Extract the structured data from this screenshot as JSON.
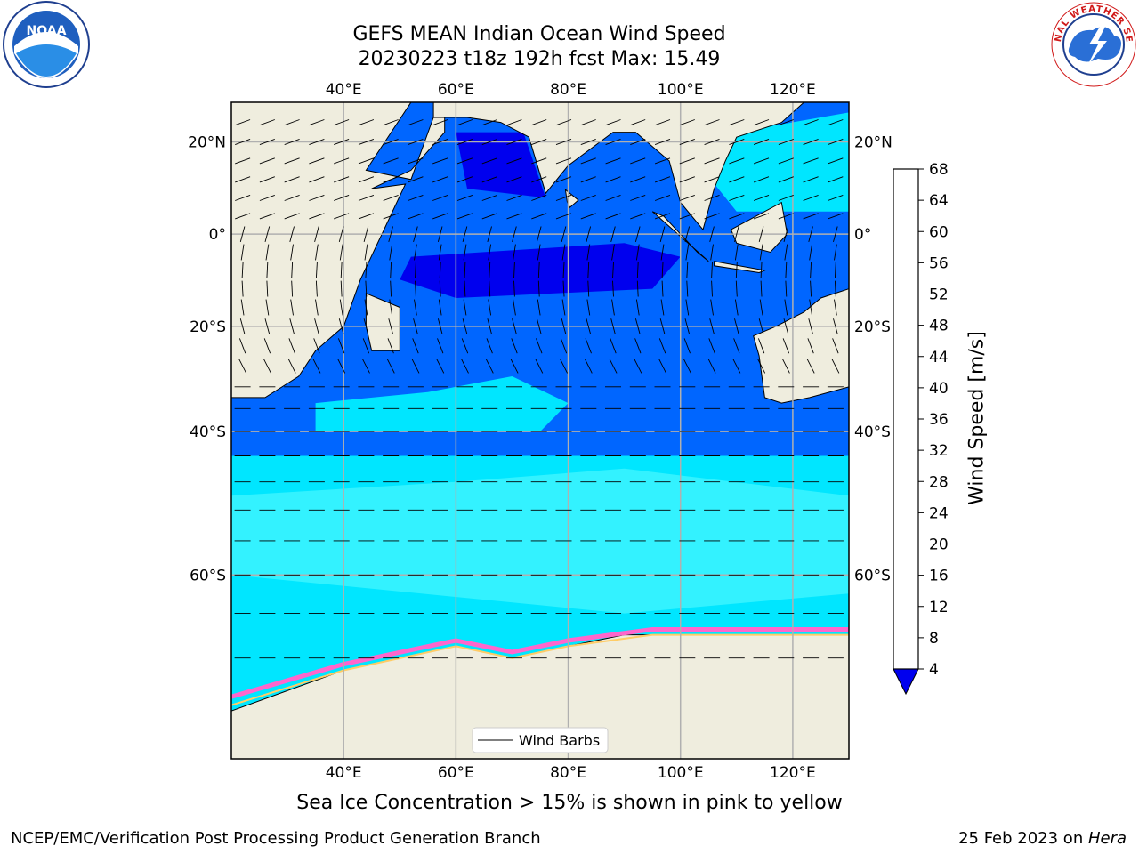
{
  "title": {
    "line1": "GEFS MEAN Indian Ocean Wind Speed",
    "line2": "20230223 t18z 192h fcst   Max: 15.49"
  },
  "map": {
    "lon_ticks": [
      "40°E",
      "60°E",
      "80°E",
      "100°E",
      "120°E"
    ],
    "lat_ticks_left": [
      "20°N",
      "0°",
      "20°S",
      "40°S",
      "60°S"
    ],
    "lat_ticks_right": [
      "20°N",
      "0°",
      "20°S",
      "40°S",
      "60°S"
    ],
    "lon_values": [
      40,
      60,
      80,
      100,
      120
    ],
    "lat_values": [
      20,
      0,
      -20,
      -40,
      -60
    ],
    "lon_range": [
      20,
      130
    ],
    "lat_range": [
      -75,
      28
    ],
    "legend_label": "Wind Barbs",
    "land_color": "#efedde",
    "ice_colors": [
      "#ff66cc",
      "#ffcc66",
      "#ffff66"
    ]
  },
  "colorbar": {
    "label": "Wind Speed [m/s]",
    "ticks": [
      "4",
      "8",
      "12",
      "16",
      "20",
      "24",
      "28",
      "32",
      "36",
      "40",
      "44",
      "48",
      "52",
      "56",
      "60",
      "64",
      "68"
    ],
    "colors": [
      "#0066ff",
      "#00e6ff",
      "#33f2ff",
      "#99ffff",
      "#4de680",
      "#33d94d",
      "#00cc00",
      "#66dd00",
      "#aadd00",
      "#ccee00",
      "#e6ee00",
      "#ffee00",
      "#ffcc00",
      "#ffaa00",
      "#ff8800",
      "#ff5500",
      "#ff2200",
      "#ff0000"
    ],
    "under_color": "#0000ee"
  },
  "caption": "Sea Ice Concentration > 15% is shown in pink to yellow",
  "footer": {
    "left": "NCEP/EMC/Verification Post Processing Product Generation Branch",
    "right_prefix": "25 Feb 2023 on ",
    "right_italic": "Hera"
  },
  "logos": {
    "noaa_text": "NOAA",
    "nws_text": "NATIONAL WEATHER SERVICE"
  }
}
